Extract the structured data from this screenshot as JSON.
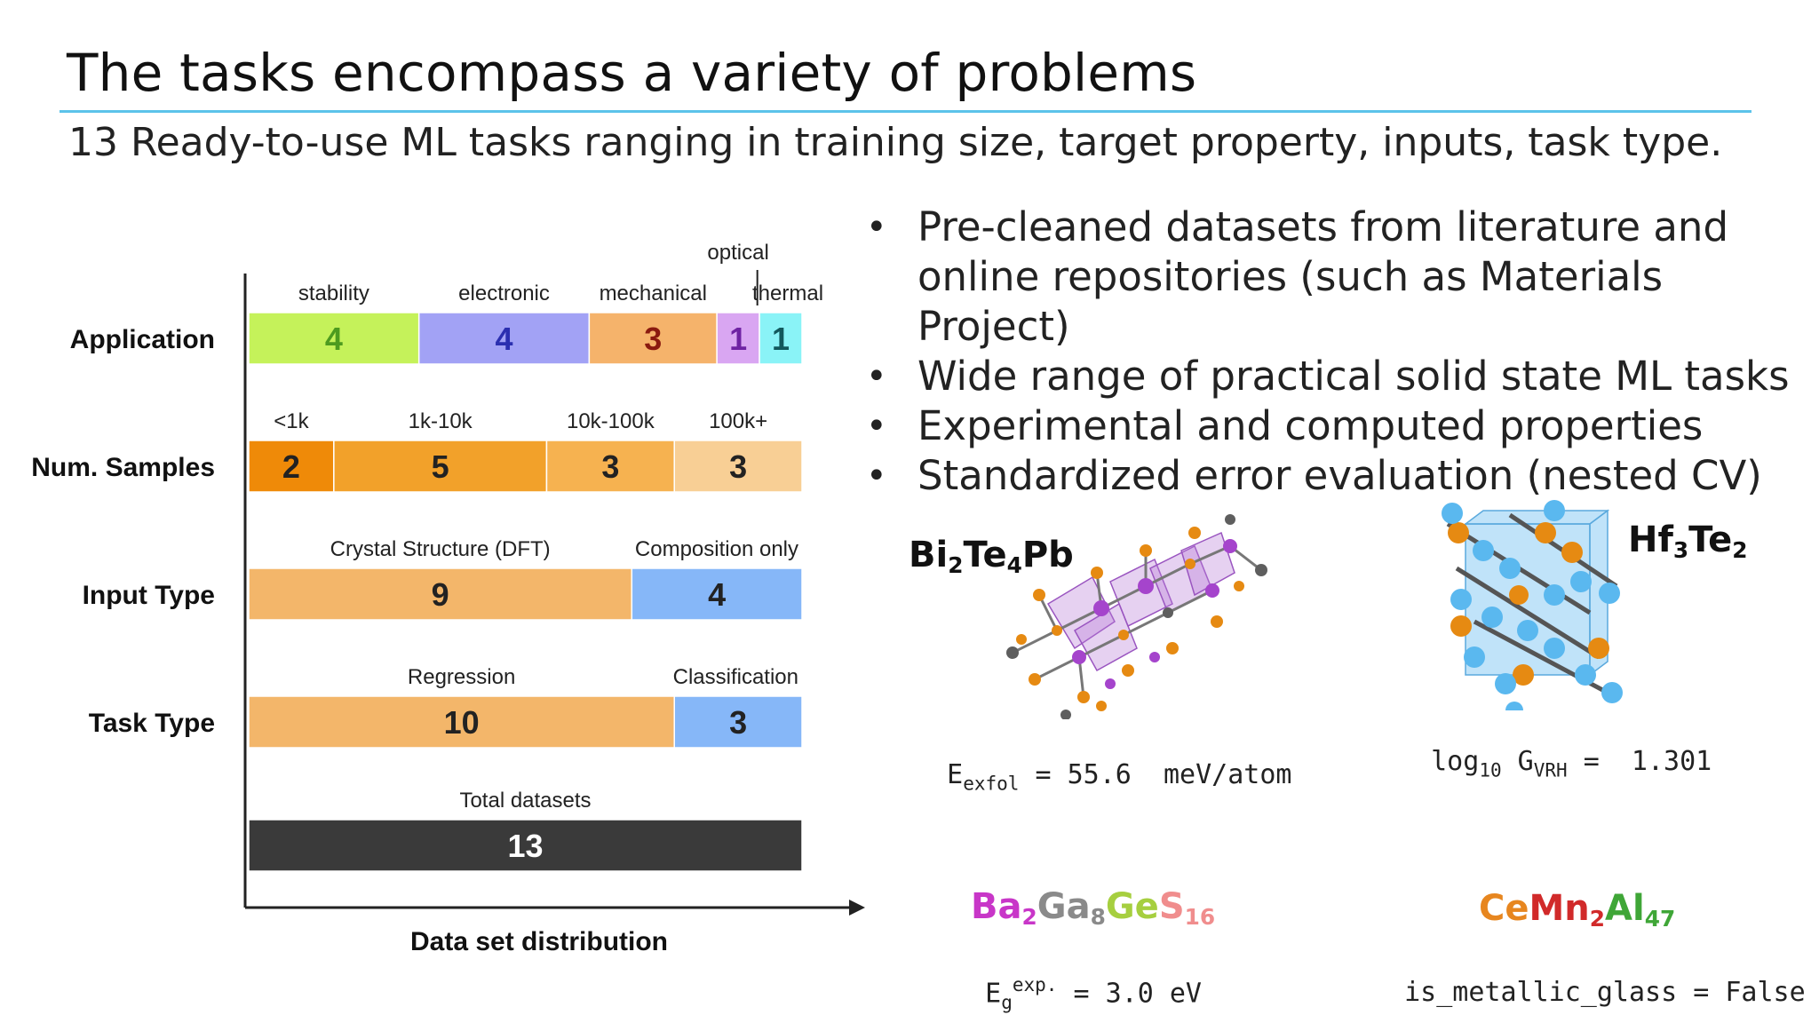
{
  "slide": {
    "title": "The tasks encompass a variety of problems",
    "subtitle": "13 Ready-to-use ML tasks ranging in training size, target property, inputs, task type."
  },
  "bullets": [
    "Pre-cleaned datasets from literature and online repositories (such as Materials Project)",
    "Wide range of practical solid state ML tasks",
    "Experimental and computed properties",
    "Standardized error evaluation (nested CV)"
  ],
  "chart_data": {
    "type": "bar",
    "xlabel": "Data set distribution",
    "rows": [
      {
        "label": "Application",
        "segments": [
          {
            "name": "stability",
            "value": 4,
            "color": "#c5f25a",
            "text_color": "#4d9b1f"
          },
          {
            "name": "electronic",
            "value": 4,
            "color": "#a2a2f5",
            "text_color": "#2b2fb0"
          },
          {
            "name": "mechanical",
            "value": 3,
            "color": "#f5b36b",
            "text_color": "#8a1a0f"
          },
          {
            "name": "optical",
            "value": 1,
            "color": "#d9a6f2",
            "text_color": "#6f22a3"
          },
          {
            "name": "thermal",
            "value": 1,
            "color": "#8af3f7",
            "text_color": "#12585c"
          }
        ]
      },
      {
        "label": "Num. Samples",
        "segments": [
          {
            "name": "<1k",
            "value": 2,
            "color": "#ef8a08",
            "text_color": "#222"
          },
          {
            "name": "1k-10k",
            "value": 5,
            "color": "#f2a12a",
            "text_color": "#222"
          },
          {
            "name": "10k-100k",
            "value": 3,
            "color": "#f6b250",
            "text_color": "#222"
          },
          {
            "name": "100k+",
            "value": 3,
            "color": "#f8cf95",
            "text_color": "#222"
          }
        ]
      },
      {
        "label": "Input Type",
        "segments": [
          {
            "name": "Crystal Structure (DFT)",
            "value": 9,
            "color": "#f3b66a",
            "text_color": "#222"
          },
          {
            "name": "Composition only",
            "value": 4,
            "color": "#86b7f8",
            "text_color": "#222"
          }
        ]
      },
      {
        "label": "Task Type",
        "segments": [
          {
            "name": "Regression",
            "value": 10,
            "color": "#f3b66a",
            "text_color": "#222"
          },
          {
            "name": "Classification",
            "value": 3,
            "color": "#86b7f8",
            "text_color": "#222"
          }
        ]
      },
      {
        "label": "",
        "segments": [
          {
            "name": "Total datasets",
            "value": 13,
            "color": "#3a3a3a",
            "text_color": "#ffffff"
          }
        ]
      }
    ]
  },
  "examples": {
    "bi2te4pb": {
      "formula": [
        "Bi",
        "2",
        "Te",
        "4",
        "Pb"
      ],
      "eq_sym": "E",
      "eq_sub": "exfol",
      "eq_rest": " = 55.6  meV/atom"
    },
    "hf3te2": {
      "formula": [
        "Hf",
        "3",
        "Te",
        "2"
      ],
      "eq_fn": "log",
      "eq_fn_sub": "10",
      "eq_sym": " G",
      "eq_sub": "VRH",
      "eq_rest": " =  1.301"
    },
    "ba2ga8ges16": {
      "formula": [
        "Ba",
        "2",
        "Ga",
        "8",
        "Ge",
        "S",
        "16"
      ],
      "eq_sym": "E",
      "eq_sub": "g",
      "eq_sup": "exp.",
      "eq_rest": " = 3.0 eV"
    },
    "cemn2al47": {
      "formula": [
        "Ce",
        "Mn",
        "2",
        "Al",
        "47"
      ],
      "eq_rest": "is_metallic_glass = False"
    }
  },
  "colors": {
    "accent_rule": "#5cc3ea",
    "axis": "#222222",
    "bond": "#555555",
    "bi": "#e68a12",
    "te": "#5e5e5e",
    "pb": "#a544cc",
    "hf": "#5ab8ef"
  }
}
